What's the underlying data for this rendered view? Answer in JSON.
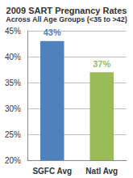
{
  "chart_data": {
    "type": "bar",
    "title": "2009 SART Pregnancy Rates",
    "subtitle": "Across All Age Groups (<35 to >42)",
    "categories": [
      "SGFC Avg",
      "Natl Avg"
    ],
    "values": [
      43,
      37
    ],
    "value_labels": [
      "43%",
      "37%"
    ],
    "colors": [
      "#4f81bd",
      "#9bbb59"
    ],
    "ylim": [
      20,
      45
    ],
    "yticks": [
      {
        "value": 20,
        "label": "20%"
      },
      {
        "value": 25,
        "label": "25%"
      },
      {
        "value": 30,
        "label": "30%"
      },
      {
        "value": 35,
        "label": "35%"
      },
      {
        "value": 40,
        "label": "40%"
      },
      {
        "value": 45,
        "label": "45%"
      }
    ],
    "grid": true,
    "data_labels": true
  }
}
